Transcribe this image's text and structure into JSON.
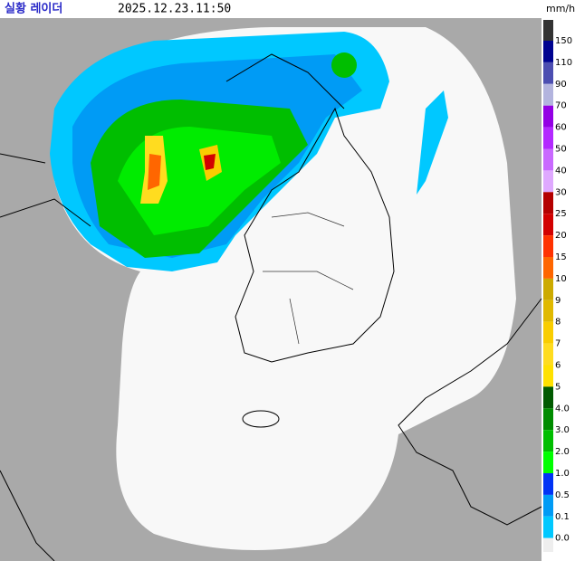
{
  "header": {
    "title": "실황 레이더",
    "timestamp": "2025.12.23.11:50"
  },
  "legend": {
    "unit": "mm/h",
    "labels": [
      "150",
      "110",
      "90",
      "70",
      "60",
      "50",
      "40",
      "30",
      "25",
      "20",
      "15",
      "10",
      "9",
      "8",
      "7",
      "6",
      "5",
      "4.0",
      "3.0",
      "2.0",
      "1.0",
      "0.5",
      "0.1",
      "0.0"
    ],
    "colors": [
      "#333333",
      "#000390",
      "#4c4eb1",
      "#b3b4de",
      "#9300e4",
      "#b329ff",
      "#c969ff",
      "#dfa9ff",
      "#b40000",
      "#d20000",
      "#ff3200",
      "#ff6600",
      "#ccaa00",
      "#e0b900",
      "#f9cd00",
      "#ffdc1f",
      "#ffe100",
      "#005a00",
      "#008c00",
      "#00be00",
      "#00ff00",
      "#0033f5",
      "#009bf5",
      "#00c8ff",
      "#eeeeee"
    ]
  }
}
